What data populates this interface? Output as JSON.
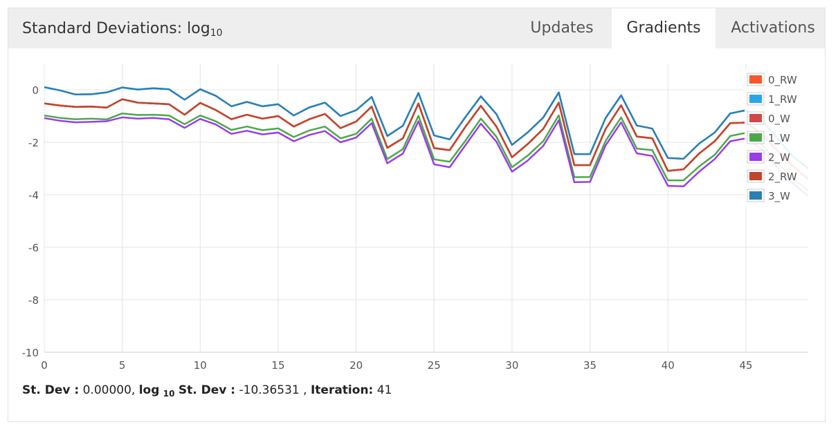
{
  "header": {
    "title_main": "Standard Deviations: log",
    "title_sub": "10",
    "tabs": [
      {
        "label": "Updates",
        "active": false
      },
      {
        "label": "Gradients",
        "active": true
      },
      {
        "label": "Activations",
        "active": false
      }
    ]
  },
  "footer": {
    "stdev_label": "St. Dev :",
    "stdev_value": "0.00000,",
    "log_label_pre": "log",
    "log_label_sub": "10",
    "log_label_post": "St. Dev :",
    "log_value": "-10.36531 ,",
    "iter_label": "Iteration:",
    "iter_value": "41"
  },
  "chart_data": {
    "type": "line",
    "title": "",
    "xlabel": "",
    "ylabel": "",
    "xlim": [
      0,
      49
    ],
    "ylim": [
      -10,
      1
    ],
    "xticks": [
      0,
      5,
      10,
      15,
      20,
      25,
      30,
      35,
      40,
      45
    ],
    "yticks": [
      0,
      -2,
      -4,
      -6,
      -8,
      -10
    ],
    "grid": true,
    "legend_position": "top-right",
    "x": [
      0,
      1,
      2,
      3,
      4,
      5,
      6,
      7,
      8,
      9,
      10,
      11,
      12,
      13,
      14,
      15,
      16,
      17,
      18,
      19,
      20,
      21,
      22,
      23,
      24,
      25,
      26,
      27,
      28,
      29,
      30,
      31,
      32,
      33,
      34,
      35,
      36,
      37,
      38,
      39,
      40,
      41,
      42,
      43,
      44,
      45,
      46,
      47,
      48,
      49
    ],
    "series": [
      {
        "name": "0_RW",
        "color": "#f4592d",
        "values": [
          -0.52,
          -0.6,
          -0.65,
          -0.64,
          -0.68,
          -0.36,
          -0.49,
          -0.52,
          -0.55,
          -0.95,
          -0.5,
          -0.77,
          -1.12,
          -0.95,
          -1.1,
          -1.0,
          -1.4,
          -1.12,
          -0.92,
          -1.46,
          -1.21,
          -0.64,
          -2.21,
          -1.85,
          -0.52,
          -2.22,
          -2.3,
          -1.42,
          -0.61,
          -1.4,
          -2.57,
          -2.07,
          -1.49,
          -0.49,
          -2.87,
          -2.87,
          -1.5,
          -0.59,
          -1.78,
          -1.85,
          -3.09,
          -3.03,
          -2.43,
          -1.96,
          -1.27,
          -1.25,
          -1.67,
          -2.31,
          -2.9,
          -3.4
        ]
      },
      {
        "name": "1_RW",
        "color": "#2aa6e8",
        "values": [
          0.1,
          -0.02,
          -0.18,
          -0.17,
          -0.1,
          0.09,
          0.01,
          0.06,
          0.02,
          -0.38,
          0.02,
          -0.23,
          -0.63,
          -0.46,
          -0.63,
          -0.55,
          -0.98,
          -0.67,
          -0.49,
          -1.0,
          -0.78,
          -0.27,
          -1.76,
          -1.37,
          -0.12,
          -1.74,
          -1.89,
          -1.05,
          -0.25,
          -0.93,
          -2.1,
          -1.63,
          -1.06,
          -0.1,
          -2.45,
          -2.45,
          -1.08,
          -0.21,
          -1.36,
          -1.48,
          -2.6,
          -2.63,
          -2.05,
          -1.63,
          -0.9,
          -0.78,
          -1.13,
          -1.84,
          -2.53,
          -3.0
        ]
      },
      {
        "name": "0_W",
        "color": "#d04a4a",
        "values": [
          -0.52,
          -0.6,
          -0.65,
          -0.64,
          -0.68,
          -0.36,
          -0.49,
          -0.52,
          -0.55,
          -0.95,
          -0.5,
          -0.77,
          -1.12,
          -0.95,
          -1.1,
          -1.0,
          -1.4,
          -1.12,
          -0.92,
          -1.46,
          -1.21,
          -0.64,
          -2.21,
          -1.85,
          -0.52,
          -2.22,
          -2.3,
          -1.42,
          -0.61,
          -1.4,
          -2.57,
          -2.07,
          -1.49,
          -0.49,
          -2.87,
          -2.87,
          -1.5,
          -0.59,
          -1.78,
          -1.85,
          -3.09,
          -3.03,
          -2.43,
          -1.96,
          -1.27,
          -1.25,
          -1.67,
          -2.31,
          -2.9,
          -3.4
        ]
      },
      {
        "name": "1_W",
        "color": "#4aa84a",
        "values": [
          -0.98,
          -1.07,
          -1.12,
          -1.1,
          -1.13,
          -0.9,
          -0.96,
          -0.95,
          -0.98,
          -1.31,
          -0.98,
          -1.2,
          -1.53,
          -1.4,
          -1.54,
          -1.47,
          -1.8,
          -1.55,
          -1.4,
          -1.85,
          -1.68,
          -1.1,
          -2.64,
          -2.26,
          -0.99,
          -2.65,
          -2.74,
          -1.95,
          -1.1,
          -1.79,
          -2.95,
          -2.51,
          -1.96,
          -0.97,
          -3.33,
          -3.32,
          -1.95,
          -1.05,
          -2.24,
          -2.3,
          -3.45,
          -3.45,
          -2.92,
          -2.48,
          -1.76,
          -1.64,
          -2.06,
          -2.76,
          -3.35,
          -3.85
        ]
      },
      {
        "name": "2_W",
        "color": "#9b3ce8",
        "values": [
          -1.08,
          -1.18,
          -1.24,
          -1.22,
          -1.2,
          -1.05,
          -1.1,
          -1.07,
          -1.12,
          -1.45,
          -1.11,
          -1.32,
          -1.68,
          -1.56,
          -1.7,
          -1.63,
          -1.96,
          -1.72,
          -1.57,
          -2.0,
          -1.82,
          -1.27,
          -2.8,
          -2.43,
          -1.2,
          -2.84,
          -2.95,
          -2.12,
          -1.29,
          -1.98,
          -3.12,
          -2.7,
          -2.14,
          -1.16,
          -3.52,
          -3.51,
          -2.12,
          -1.24,
          -2.42,
          -2.52,
          -3.66,
          -3.68,
          -3.12,
          -2.64,
          -1.96,
          -1.85,
          -2.25,
          -2.95,
          -3.55,
          -4.05
        ]
      },
      {
        "name": "2_RW",
        "color": "#c0462c",
        "values": [
          -0.52,
          -0.6,
          -0.65,
          -0.64,
          -0.68,
          -0.36,
          -0.49,
          -0.52,
          -0.55,
          -0.95,
          -0.5,
          -0.77,
          -1.12,
          -0.95,
          -1.1,
          -1.0,
          -1.4,
          -1.12,
          -0.92,
          -1.46,
          -1.21,
          -0.64,
          -2.21,
          -1.85,
          -0.52,
          -2.22,
          -2.3,
          -1.42,
          -0.61,
          -1.4,
          -2.57,
          -2.07,
          -1.49,
          -0.49,
          -2.87,
          -2.87,
          -1.5,
          -0.59,
          -1.78,
          -1.85,
          -3.09,
          -3.03,
          -2.43,
          -1.96,
          -1.27,
          -1.25,
          -1.67,
          -2.31,
          -2.9,
          -3.4
        ]
      },
      {
        "name": "3_W",
        "color": "#2b7fb5",
        "values": [
          0.1,
          -0.02,
          -0.18,
          -0.17,
          -0.1,
          0.09,
          0.01,
          0.06,
          0.02,
          -0.38,
          0.02,
          -0.23,
          -0.63,
          -0.46,
          -0.63,
          -0.55,
          -0.98,
          -0.67,
          -0.49,
          -1.0,
          -0.78,
          -0.27,
          -1.76,
          -1.37,
          -0.12,
          -1.74,
          -1.89,
          -1.05,
          -0.25,
          -0.93,
          -2.1,
          -1.63,
          -1.06,
          -0.1,
          -2.45,
          -2.45,
          -1.08,
          -0.21,
          -1.36,
          -1.48,
          -2.6,
          -2.63,
          -2.05,
          -1.63,
          -0.9,
          -0.78,
          -1.13,
          -1.84,
          -2.53,
          -3.0
        ]
      }
    ]
  }
}
